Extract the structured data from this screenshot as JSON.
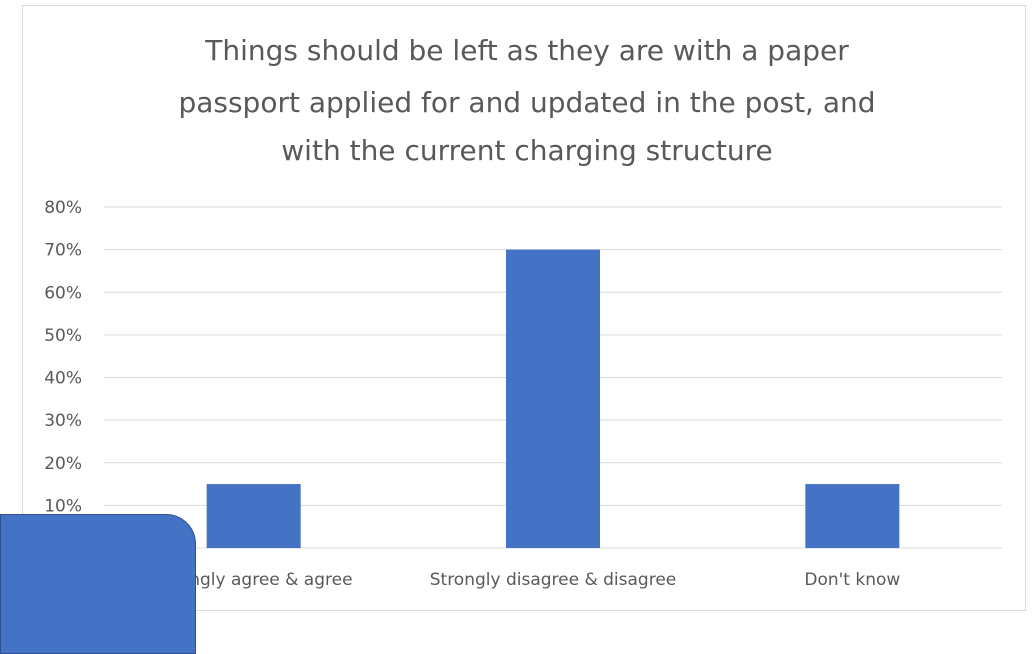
{
  "chart_data": {
    "type": "bar",
    "title_lines": [
      "Things should be left as they are with a paper",
      "passport applied for and updated in the post, and",
      "with the current charging structure"
    ],
    "categories": [
      "Strongly agree & agree",
      "Strongly disagree & disagree",
      "Don't know"
    ],
    "values": [
      15,
      70,
      15
    ],
    "value_unit": "%",
    "ylim": [
      0,
      80
    ],
    "y_ticks": [
      "10%",
      "20%",
      "30%",
      "40%",
      "50%",
      "60%",
      "70%",
      "80%"
    ],
    "xlabel": "",
    "ylabel": "",
    "grid": "horizontal",
    "legend": "none",
    "bar_color": "#4472c4"
  }
}
